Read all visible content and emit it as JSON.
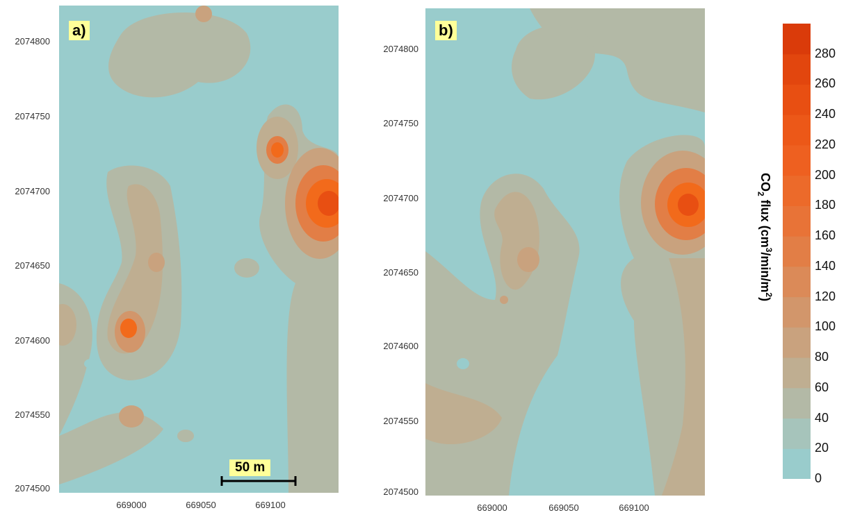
{
  "panel_a": {
    "label": "a)",
    "y_ticks": [
      "2074800",
      "2074750",
      "2074700",
      "2074650",
      "2074600",
      "2074550",
      "2074500"
    ],
    "x_ticks": [
      "669000",
      "669050",
      "669100"
    ],
    "scale_bar_label": "50 m"
  },
  "panel_b": {
    "label": "b)",
    "y_ticks": [
      "2074800",
      "2074750",
      "2074700",
      "2074650",
      "2074600",
      "2074550",
      "2074500"
    ],
    "x_ticks": [
      "669000",
      "669050",
      "669100"
    ]
  },
  "colorbar": {
    "title_main": "CO",
    "title_sub": "2",
    "title_rest": " flux (cm",
    "title_sup1": "3",
    "title_mid": "/min/m",
    "title_sup2": "2",
    "title_end": ")",
    "ticks": [
      "0",
      "20",
      "40",
      "60",
      "80",
      "100",
      "120",
      "140",
      "160",
      "180",
      "200",
      "220",
      "240",
      "260",
      "280"
    ],
    "colors": [
      "#99cccc",
      "#a6c4bb",
      "#b3b9a6",
      "#bfae91",
      "#c9a27e",
      "#d2966b",
      "#db8a58",
      "#e27e46",
      "#e87337",
      "#ec6a2a",
      "#ee6020",
      "#ec5818",
      "#e84f12",
      "#e2460e",
      "#da3b0a"
    ]
  },
  "colors": {
    "background": "#99cccc",
    "low": "#b3b9a6",
    "mid": "#c9a27e",
    "high": "#f26a1b"
  }
}
